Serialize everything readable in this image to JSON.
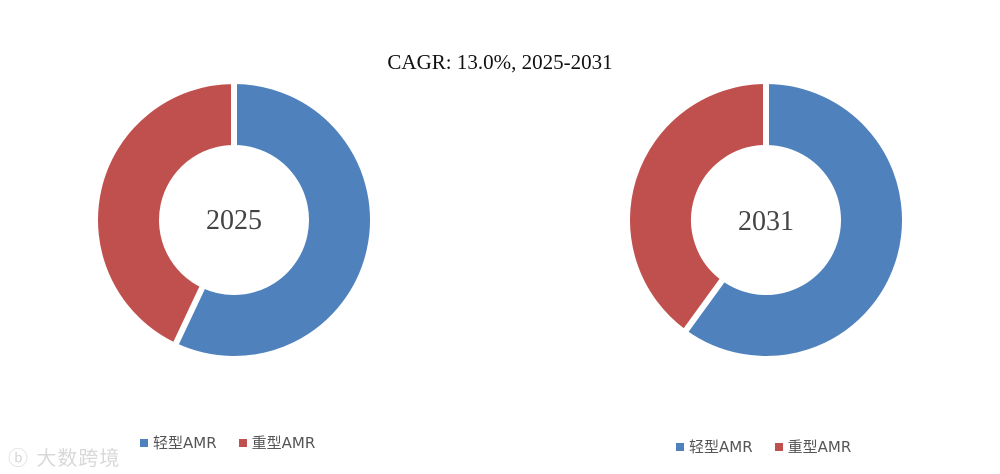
{
  "header": {
    "cagr_text": "CAGR:  13.0%, 2025-2031"
  },
  "colors": {
    "light_amr": "#4f81bd",
    "heavy_amr": "#c0504d",
    "gap": "#ffffff"
  },
  "chart_data": [
    {
      "type": "pie",
      "center_label": "2025",
      "categories": [
        "轻型AMR",
        "重型AMR"
      ],
      "values": [
        57,
        43
      ],
      "legend": [
        "轻型AMR",
        "重型AMR"
      ],
      "legend_position": "bottom"
    },
    {
      "type": "pie",
      "center_label": "2031",
      "categories": [
        "轻型AMR",
        "重型AMR"
      ],
      "values": [
        60,
        40
      ],
      "legend": [
        "轻型AMR",
        "重型AMR"
      ],
      "legend_position": "bottom"
    }
  ],
  "watermark": {
    "text": "大数跨境"
  }
}
